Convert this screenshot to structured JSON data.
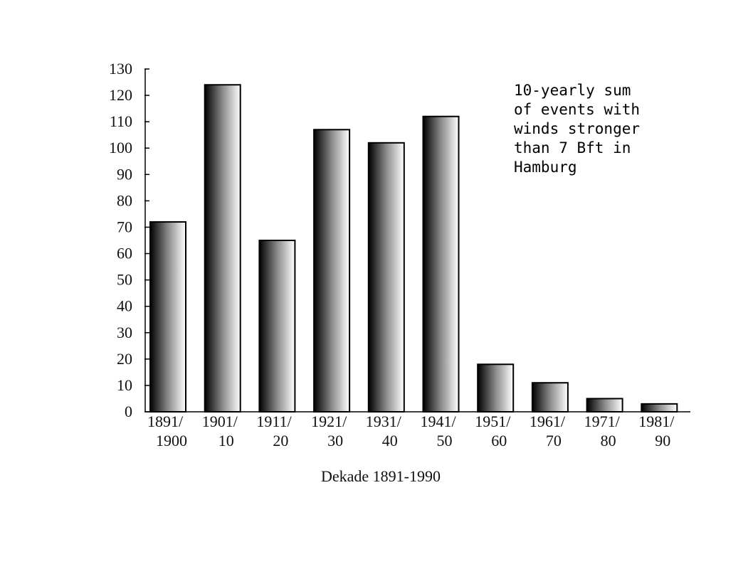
{
  "chart_data": {
    "type": "bar",
    "categories": [
      [
        "1891/",
        "1900"
      ],
      [
        "1901/",
        "10"
      ],
      [
        "1911/",
        "20"
      ],
      [
        "1921/",
        "30"
      ],
      [
        "1931/",
        "40"
      ],
      [
        "1941/",
        "50"
      ],
      [
        "1951/",
        "60"
      ],
      [
        "1961/",
        "70"
      ],
      [
        "1971/",
        "80"
      ],
      [
        "1981/",
        "90"
      ]
    ],
    "values": [
      72,
      124,
      65,
      107,
      102,
      112,
      18,
      11,
      5,
      3
    ],
    "ylim": [
      0,
      130
    ],
    "yticks": [
      0,
      10,
      20,
      30,
      40,
      50,
      60,
      70,
      80,
      90,
      100,
      110,
      120,
      130
    ],
    "xlabel": "Dekade 1891-1990",
    "ylabel": "",
    "grid": false,
    "bar_fill": "horizontal gradient black to white",
    "annotation": "10-yearly sum\nof events with\nwinds stronger\nthan 7 Bft in\nHamburg"
  }
}
